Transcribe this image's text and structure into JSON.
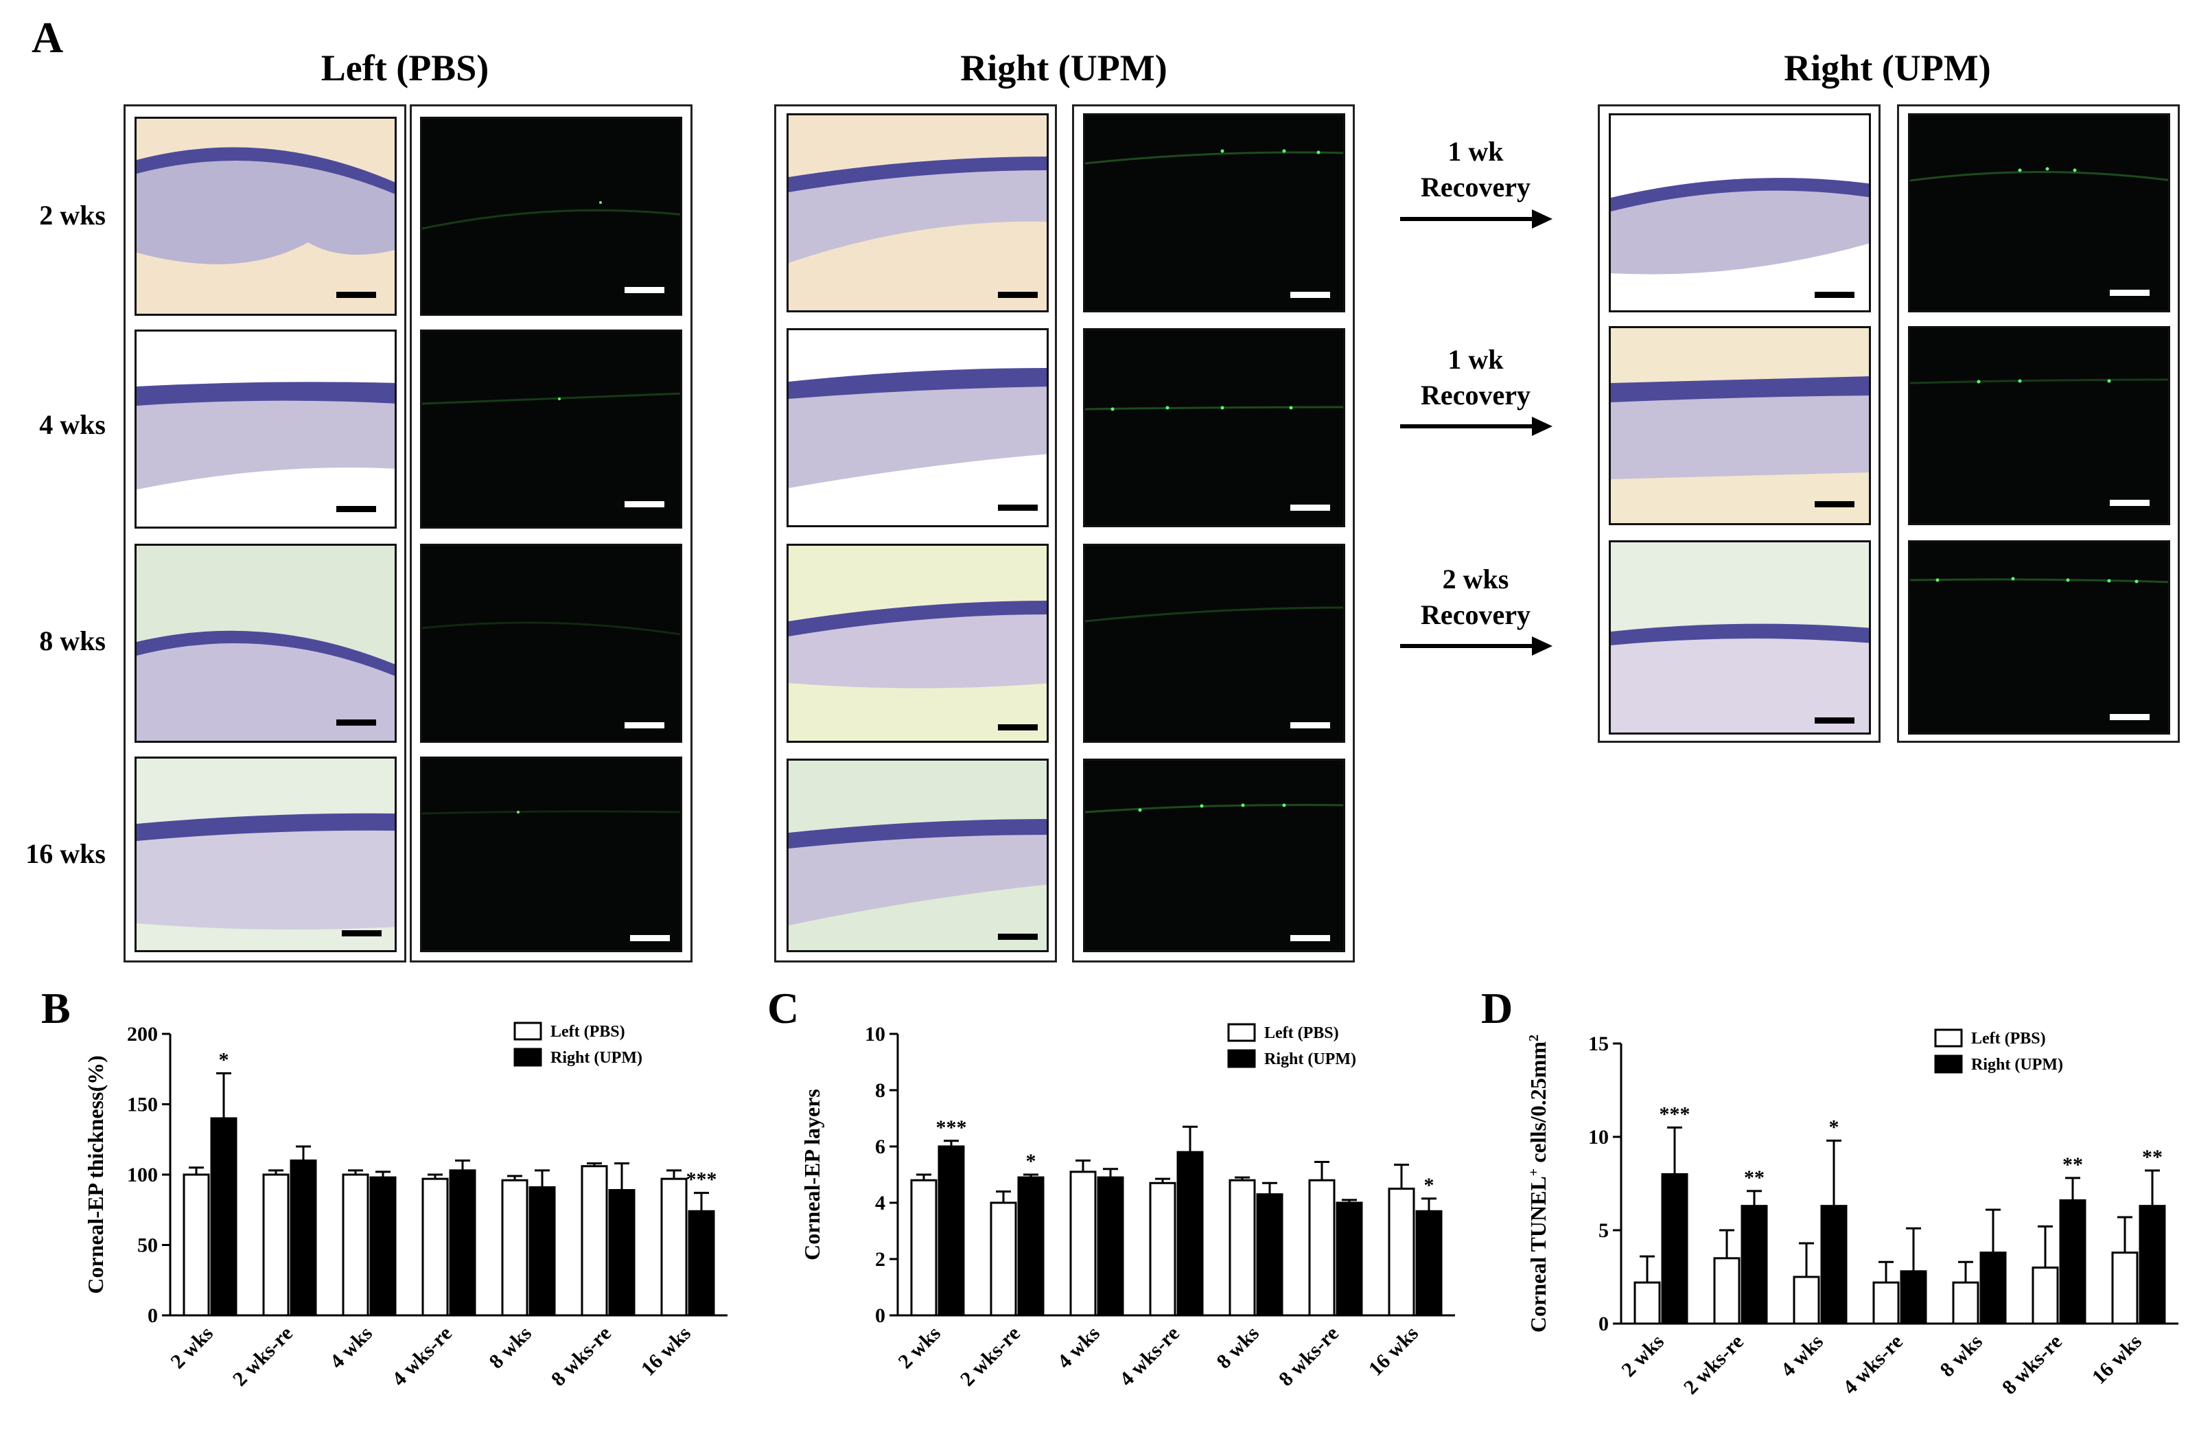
{
  "panel_a": {
    "letter": "A",
    "titles": {
      "left": "Left (PBS)",
      "right": "Right (UPM)",
      "right_recovery": "Right (UPM)"
    },
    "row_labels": [
      "2 wks",
      "4 wks",
      "8 wks",
      "16 wks"
    ],
    "arrows": [
      {
        "line1": "1 wk",
        "line2": "Recovery"
      },
      {
        "line1": "1 wk",
        "line2": "Recovery"
      },
      {
        "line1": "2 wks",
        "line2": "Recovery"
      }
    ],
    "colors": {
      "he_tissue": "#b9b4d2",
      "he_epithelium": "#4e4a9a",
      "fluor_background": "#050706",
      "fluor_signal": "#5cff6a"
    }
  },
  "chart_data": [
    {
      "panel": "B",
      "type": "bar",
      "title": "",
      "ylabel": "Corneal-EP thickness(%)",
      "xlabel": "",
      "ylim": [
        0,
        200
      ],
      "yticks": [
        0,
        50,
        100,
        150,
        200
      ],
      "categories": [
        "2 wks",
        "2 wks-re",
        "4 wks",
        "4 wks-re",
        "8 wks",
        "8 wks-re",
        "16 wks"
      ],
      "series": [
        {
          "name": "Left (PBS)",
          "color": "#ffffff",
          "values": [
            100,
            100,
            100,
            97,
            96,
            106,
            97
          ],
          "errors": [
            5,
            3,
            3,
            3,
            3,
            2,
            6
          ]
        },
        {
          "name": "Right (UPM)",
          "color": "#000000",
          "values": [
            140,
            110,
            98,
            103,
            91,
            89,
            74
          ],
          "errors": [
            32,
            10,
            4,
            7,
            12,
            19,
            13
          ]
        }
      ],
      "significance": [
        "*",
        "",
        "",
        "",
        "",
        "",
        "***"
      ],
      "legend": "top-right"
    },
    {
      "panel": "C",
      "type": "bar",
      "title": "",
      "ylabel": "Corneal-EP layers",
      "xlabel": "",
      "ylim": [
        0,
        10
      ],
      "yticks": [
        0,
        2,
        4,
        6,
        8,
        10
      ],
      "categories": [
        "2 wks",
        "2 wks-re",
        "4 wks",
        "4 wks-re",
        "8 wks",
        "8 wks-re",
        "16 wks"
      ],
      "series": [
        {
          "name": "Left (PBS)",
          "color": "#ffffff",
          "values": [
            4.8,
            4.0,
            5.1,
            4.7,
            4.8,
            4.8,
            4.5
          ],
          "errors": [
            0.2,
            0.4,
            0.4,
            0.15,
            0.1,
            0.65,
            0.85
          ]
        },
        {
          "name": "Right (UPM)",
          "color": "#000000",
          "values": [
            6.0,
            4.9,
            4.9,
            5.8,
            4.3,
            4.0,
            3.7
          ],
          "errors": [
            0.2,
            0.1,
            0.3,
            0.9,
            0.4,
            0.1,
            0.45
          ]
        }
      ],
      "significance": [
        "***",
        "*",
        "",
        "",
        "",
        "",
        "*"
      ],
      "legend": "top-right"
    },
    {
      "panel": "D",
      "type": "bar",
      "title": "",
      "ylabel": "Corneal TUNEL",
      "ylabel_sup": "+",
      "ylabel_rest": " cells/0.25mm",
      "ylabel_sup2": "2",
      "xlabel": "",
      "ylim": [
        0,
        15
      ],
      "yticks": [
        0,
        5,
        10,
        15
      ],
      "categories": [
        "2 wks",
        "2 wks-re",
        "4 wks",
        "4 wks-re",
        "8 wks",
        "8 wks-re",
        "16 wks"
      ],
      "series": [
        {
          "name": "Left (PBS)",
          "color": "#ffffff",
          "values": [
            2.2,
            3.5,
            2.5,
            2.2,
            2.2,
            3.0,
            3.8
          ],
          "errors": [
            1.4,
            1.5,
            1.8,
            1.1,
            1.1,
            2.2,
            1.9
          ]
        },
        {
          "name": "Right (UPM)",
          "color": "#000000",
          "values": [
            8.0,
            6.3,
            6.3,
            2.8,
            3.8,
            6.6,
            6.3
          ],
          "errors": [
            2.5,
            0.8,
            3.5,
            2.3,
            2.3,
            1.2,
            1.9
          ]
        }
      ],
      "significance": [
        "***",
        "**",
        "*",
        "",
        "",
        "**",
        "**"
      ],
      "legend": "top-right"
    }
  ]
}
